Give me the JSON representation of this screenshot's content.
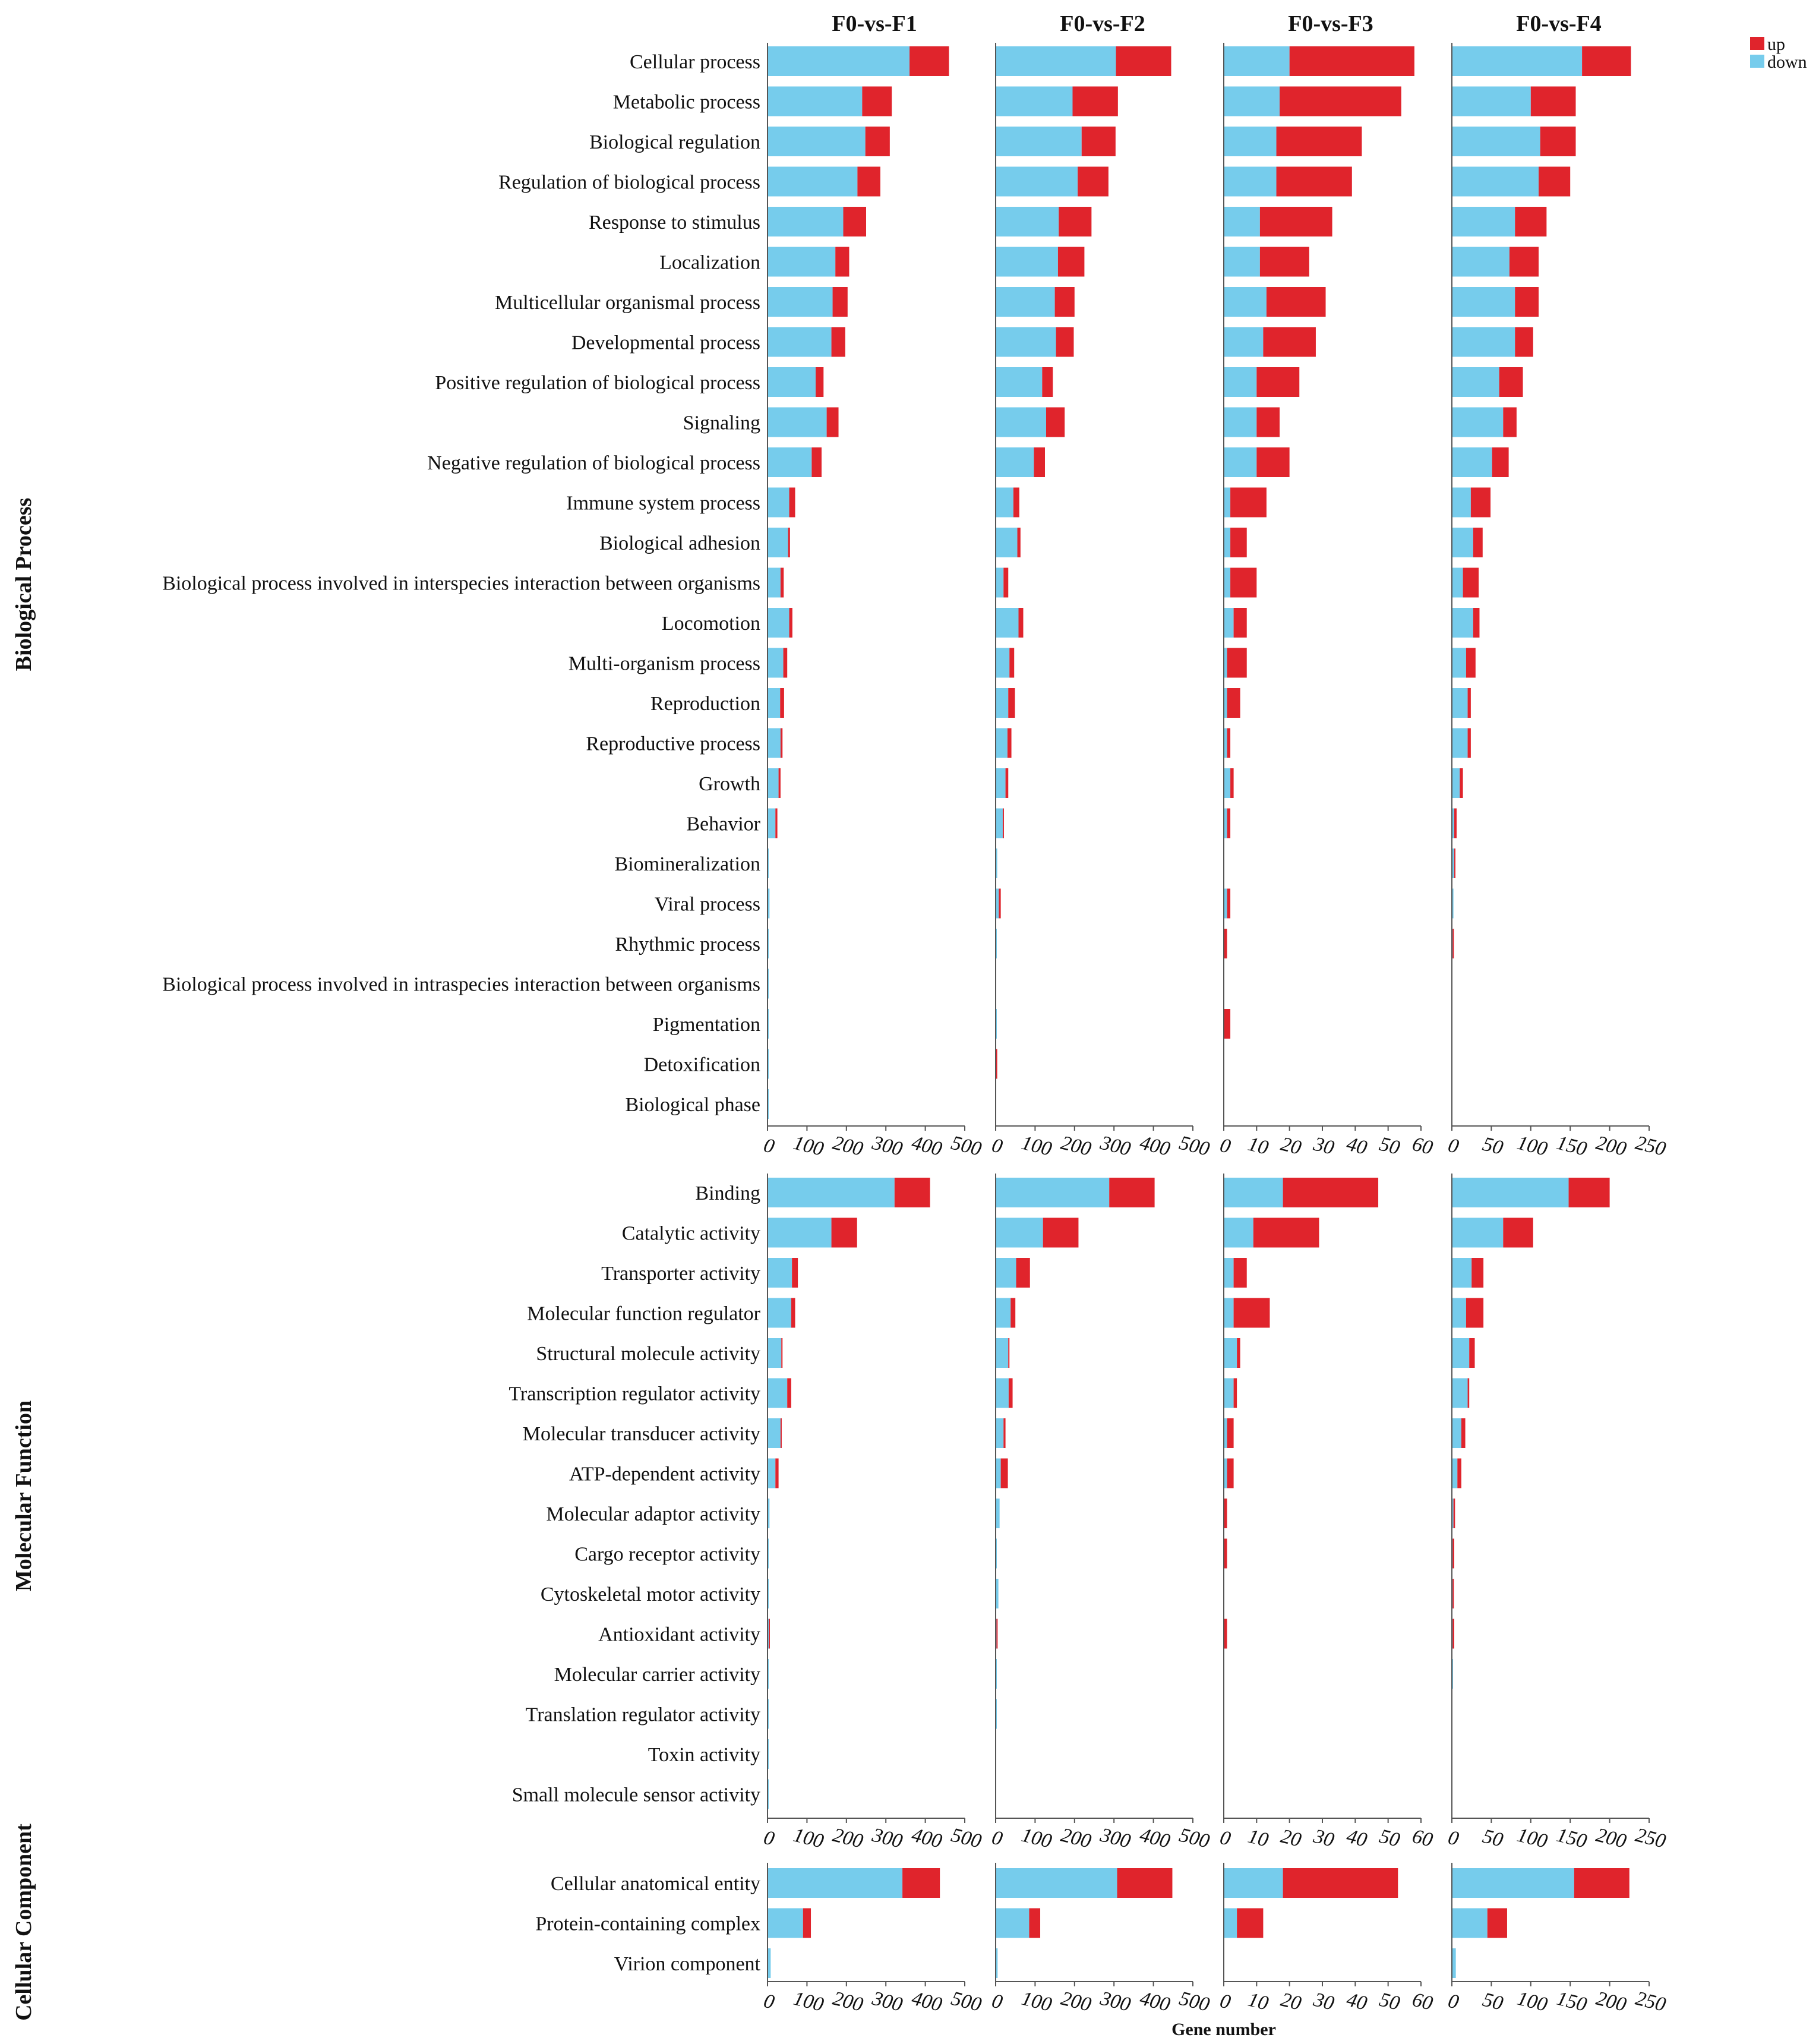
{
  "chart_data": {
    "type": "bar",
    "stacked": true,
    "orientation": "horizontal",
    "xlabel": "Gene number",
    "legend": {
      "position": "top-right",
      "entries": [
        {
          "name": "up",
          "color": "#e0242c"
        },
        {
          "name": "down",
          "color": "#76ccec"
        }
      ]
    },
    "panels": [
      {
        "title": "F0-vs-F1",
        "xlim": [
          0,
          500
        ],
        "ticks": [
          0,
          100,
          200,
          300,
          400,
          500
        ]
      },
      {
        "title": "F0-vs-F2",
        "xlim": [
          0,
          500
        ],
        "ticks": [
          0,
          100,
          200,
          300,
          400,
          500
        ]
      },
      {
        "title": "F0-vs-F3",
        "xlim": [
          0,
          60
        ],
        "ticks": [
          0,
          10,
          20,
          30,
          40,
          50,
          60
        ]
      },
      {
        "title": "F0-vs-F4",
        "xlim": [
          0,
          250
        ],
        "ticks": [
          0,
          50,
          100,
          150,
          200,
          250
        ]
      }
    ],
    "groups": [
      {
        "name": "Biological Process",
        "categories": [
          {
            "label": "Cellular process",
            "values": [
              [
                360,
                100
              ],
              [
                305,
                140
              ],
              [
                20,
                38
              ],
              [
                165,
                62
              ]
            ]
          },
          {
            "label": "Metabolic process",
            "values": [
              [
                240,
                75
              ],
              [
                195,
                115
              ],
              [
                17,
                37
              ],
              [
                100,
                57
              ]
            ]
          },
          {
            "label": "Biological regulation",
            "values": [
              [
                248,
                62
              ],
              [
                218,
                86
              ],
              [
                16,
                26
              ],
              [
                112,
                45
              ]
            ]
          },
          {
            "label": "Regulation of biological process",
            "values": [
              [
                228,
                58
              ],
              [
                208,
                78
              ],
              [
                16,
                23
              ],
              [
                110,
                40
              ]
            ]
          },
          {
            "label": "Response to stimulus",
            "values": [
              [
                192,
                58
              ],
              [
                160,
                83
              ],
              [
                11,
                22
              ],
              [
                80,
                40
              ]
            ]
          },
          {
            "label": "Localization",
            "values": [
              [
                172,
                35
              ],
              [
                158,
                67
              ],
              [
                11,
                15
              ],
              [
                73,
                37
              ]
            ]
          },
          {
            "label": "Multicellular organismal process",
            "values": [
              [
                165,
                38
              ],
              [
                150,
                50
              ],
              [
                13,
                18
              ],
              [
                80,
                30
              ]
            ]
          },
          {
            "label": "Developmental process",
            "values": [
              [
                162,
                35
              ],
              [
                153,
                45
              ],
              [
                12,
                16
              ],
              [
                80,
                23
              ]
            ]
          },
          {
            "label": "Positive regulation of biological process",
            "values": [
              [
                122,
                20
              ],
              [
                118,
                27
              ],
              [
                10,
                13
              ],
              [
                60,
                30
              ]
            ]
          },
          {
            "label": "Signaling",
            "values": [
              [
                150,
                30
              ],
              [
                128,
                47
              ],
              [
                10,
                7
              ],
              [
                65,
                17
              ]
            ]
          },
          {
            "label": "Negative regulation of biological process",
            "values": [
              [
                112,
                25
              ],
              [
                97,
                28
              ],
              [
                10,
                10
              ],
              [
                51,
                21
              ]
            ]
          },
          {
            "label": "Immune system process",
            "values": [
              [
                55,
                15
              ],
              [
                45,
                15
              ],
              [
                2,
                11
              ],
              [
                24,
                25
              ]
            ]
          },
          {
            "label": "Biological adhesion",
            "values": [
              [
                52,
                5
              ],
              [
                55,
                8
              ],
              [
                2,
                5
              ],
              [
                27,
                12
              ]
            ]
          },
          {
            "label": "Biological process involved in interspecies interaction between organisms",
            "values": [
              [
                33,
                8
              ],
              [
                20,
                12
              ],
              [
                2,
                8
              ],
              [
                14,
                20
              ]
            ]
          },
          {
            "label": "Locomotion",
            "values": [
              [
                55,
                8
              ],
              [
                58,
                12
              ],
              [
                3,
                4
              ],
              [
                27,
                8
              ]
            ]
          },
          {
            "label": "Multi-organism process",
            "values": [
              [
                40,
                10
              ],
              [
                35,
                12
              ],
              [
                1,
                6
              ],
              [
                18,
                12
              ]
            ]
          },
          {
            "label": "Reproduction",
            "values": [
              [
                32,
                10
              ],
              [
                32,
                17
              ],
              [
                1,
                4
              ],
              [
                20,
                4
              ]
            ]
          },
          {
            "label": "Reproductive process",
            "values": [
              [
                33,
                5
              ],
              [
                30,
                10
              ],
              [
                1,
                1
              ],
              [
                20,
                4
              ]
            ]
          },
          {
            "label": "Growth",
            "values": [
              [
                28,
                5
              ],
              [
                25,
                7
              ],
              [
                2,
                1
              ],
              [
                10,
                4
              ]
            ]
          },
          {
            "label": "Behavior",
            "values": [
              [
                20,
                5
              ],
              [
                18,
                2
              ],
              [
                1,
                1
              ],
              [
                3,
                3
              ]
            ]
          },
          {
            "label": "Biomineralization",
            "values": [
              [
                3,
                0
              ],
              [
                4,
                0
              ],
              [
                0,
                0
              ],
              [
                3,
                1
              ]
            ]
          },
          {
            "label": "Viral process",
            "values": [
              [
                5,
                0
              ],
              [
                8,
                5
              ],
              [
                1,
                1
              ],
              [
                2,
                0
              ]
            ]
          },
          {
            "label": "Rhythmic process",
            "values": [
              [
                2,
                0
              ],
              [
                2,
                0
              ],
              [
                0,
                1
              ],
              [
                1,
                1
              ]
            ]
          },
          {
            "label": "Biological process involved in intraspecies interaction between organisms",
            "values": [
              [
                1,
                0
              ],
              [
                0,
                0
              ],
              [
                0,
                0
              ],
              [
                0,
                0
              ]
            ]
          },
          {
            "label": "Pigmentation",
            "values": [
              [
                2,
                0
              ],
              [
                1,
                0
              ],
              [
                0,
                2
              ],
              [
                0,
                0
              ]
            ]
          },
          {
            "label": "Detoxification",
            "values": [
              [
                2,
                0
              ],
              [
                1,
                2
              ],
              [
                0,
                0
              ],
              [
                0,
                0
              ]
            ]
          },
          {
            "label": "Biological phase",
            "values": [
              [
                1,
                0
              ],
              [
                0,
                0
              ],
              [
                0,
                0
              ],
              [
                0,
                0
              ]
            ]
          }
        ]
      },
      {
        "name": "Molecular Function",
        "categories": [
          {
            "label": "Binding",
            "values": [
              [
                322,
                90
              ],
              [
                288,
                115
              ],
              [
                18,
                29
              ],
              [
                148,
                52
              ]
            ]
          },
          {
            "label": "Catalytic activity",
            "values": [
              [
                162,
                65
              ],
              [
                120,
                90
              ],
              [
                9,
                20
              ],
              [
                65,
                38
              ]
            ]
          },
          {
            "label": "Transporter activity",
            "values": [
              [
                62,
                15
              ],
              [
                52,
                35
              ],
              [
                3,
                4
              ],
              [
                25,
                15
              ]
            ]
          },
          {
            "label": "Molecular function regulator",
            "values": [
              [
                60,
                10
              ],
              [
                38,
                12
              ],
              [
                3,
                11
              ],
              [
                18,
                22
              ]
            ]
          },
          {
            "label": "Structural molecule activity",
            "values": [
              [
                35,
                3
              ],
              [
                32,
                3
              ],
              [
                4,
                1
              ],
              [
                22,
                7
              ]
            ]
          },
          {
            "label": "Transcription regulator activity",
            "values": [
              [
                50,
                10
              ],
              [
                33,
                10
              ],
              [
                3,
                1
              ],
              [
                20,
                2
              ]
            ]
          },
          {
            "label": "Molecular transducer activity",
            "values": [
              [
                33,
                3
              ],
              [
                20,
                5
              ],
              [
                1,
                2
              ],
              [
                12,
                5
              ]
            ]
          },
          {
            "label": "ATP-dependent activity",
            "values": [
              [
                20,
                8
              ],
              [
                13,
                18
              ],
              [
                1,
                2
              ],
              [
                7,
                5
              ]
            ]
          },
          {
            "label": "Molecular adaptor activity",
            "values": [
              [
                5,
                0
              ],
              [
                10,
                0
              ],
              [
                0,
                1
              ],
              [
                2,
                2
              ]
            ]
          },
          {
            "label": "Cargo receptor activity",
            "values": [
              [
                3,
                0
              ],
              [
                2,
                0
              ],
              [
                0,
                1
              ],
              [
                1,
                2
              ]
            ]
          },
          {
            "label": "Cytoskeletal motor activity",
            "values": [
              [
                3,
                0
              ],
              [
                7,
                0
              ],
              [
                0,
                0
              ],
              [
                1,
                1
              ]
            ]
          },
          {
            "label": "Antioxidant activity",
            "values": [
              [
                3,
                3
              ],
              [
                2,
                2
              ],
              [
                0,
                1
              ],
              [
                1,
                2
              ]
            ]
          },
          {
            "label": "Molecular carrier activity",
            "values": [
              [
                2,
                0
              ],
              [
                1,
                0
              ],
              [
                0,
                0
              ],
              [
                1,
                0
              ]
            ]
          },
          {
            "label": "Translation regulator activity",
            "values": [
              [
                1,
                0
              ],
              [
                3,
                0
              ],
              [
                0,
                0
              ],
              [
                0,
                0
              ]
            ]
          },
          {
            "label": "Toxin activity",
            "values": [
              [
                1,
                0
              ],
              [
                0,
                0
              ],
              [
                0,
                0
              ],
              [
                0,
                0
              ]
            ]
          },
          {
            "label": "Small molecule sensor activity",
            "values": [
              [
                1,
                0
              ],
              [
                0,
                0
              ],
              [
                0,
                0
              ],
              [
                0,
                0
              ]
            ]
          }
        ]
      },
      {
        "name": "Cellular Component",
        "categories": [
          {
            "label": "Cellular anatomical entity",
            "values": [
              [
                342,
                95
              ],
              [
                308,
                140
              ],
              [
                18,
                35
              ],
              [
                155,
                70
              ]
            ]
          },
          {
            "label": "Protein-containing complex",
            "values": [
              [
                90,
                20
              ],
              [
                85,
                28
              ],
              [
                4,
                8
              ],
              [
                45,
                25
              ]
            ]
          },
          {
            "label": "Virion component",
            "values": [
              [
                8,
                0
              ],
              [
                5,
                0
              ],
              [
                0,
                0
              ],
              [
                5,
                0
              ]
            ]
          }
        ]
      }
    ]
  }
}
